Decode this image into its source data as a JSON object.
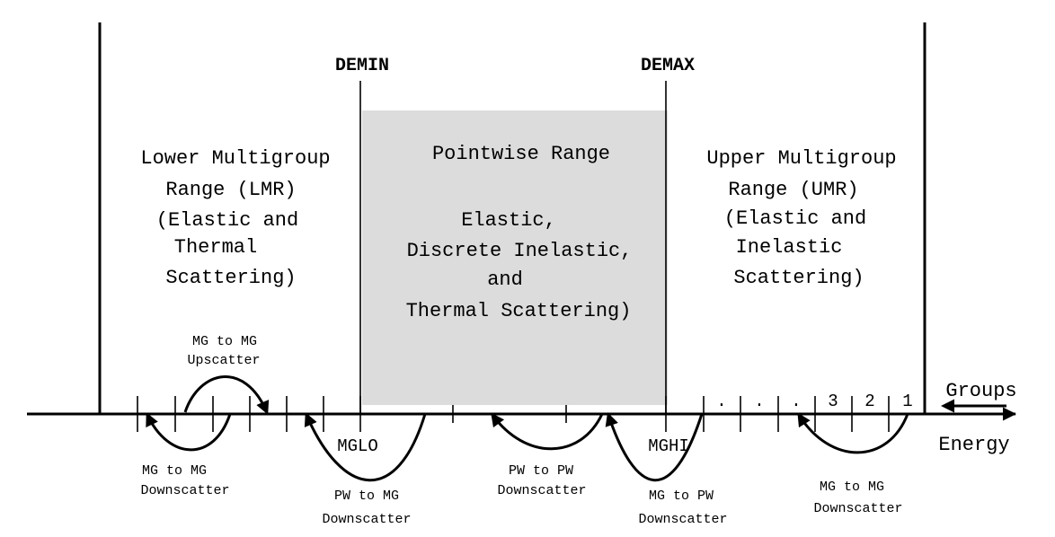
{
  "colors": {
    "pointwise_fill": "#dcdcdc",
    "ink": "#000000",
    "background": "#ffffff"
  },
  "markers": {
    "demin": "DEMIN",
    "demax": "DEMAX",
    "mglo": "MGLO",
    "mghi": "MGHI"
  },
  "regions": {
    "lower": [
      "Lower Multigroup",
      "Range (LMR)",
      "(Elastic and",
      "Thermal",
      "Scattering)"
    ],
    "pointwise": [
      "Pointwise Range",
      "",
      "Elastic,",
      "Discrete Inelastic,",
      "and",
      "Thermal Scattering)"
    ],
    "upper": [
      "Upper Multigroup",
      "Range (UMR)",
      "(Elastic and",
      "Inelastic",
      "Scattering)"
    ]
  },
  "scatter_labels": {
    "mg_up": [
      "MG to MG",
      "Upscatter"
    ],
    "mg_down_left": [
      "MG to MG",
      "Downscatter"
    ],
    "pw_to_mg": [
      "PW to MG",
      "Downscatter"
    ],
    "pw_to_pw": [
      "PW to PW",
      "Downscatter"
    ],
    "mg_to_pw": [
      "MG to PW",
      "Downscatter"
    ],
    "mg_down_right": [
      "MG to MG",
      "Downscatter"
    ]
  },
  "groups": {
    "numbers": [
      "3",
      "2",
      "1"
    ],
    "dots": [
      ".",
      ".",
      ".",
      "."
    ]
  },
  "axis": {
    "groups_label": "Groups",
    "energy_label": "Energy"
  }
}
